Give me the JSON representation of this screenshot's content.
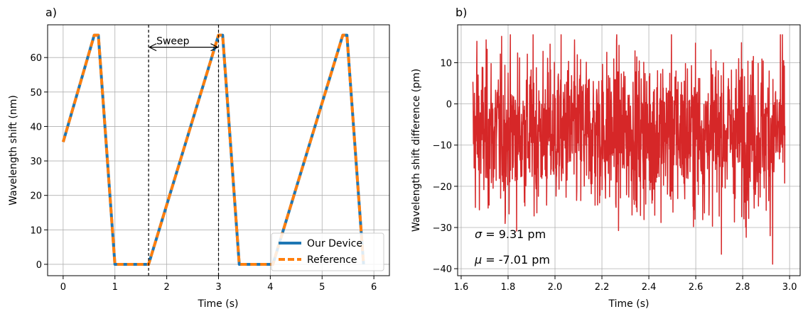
{
  "chart_data": [
    {
      "type": "line",
      "panel_label": "a)",
      "xlabel": "Time (s)",
      "ylabel": "Wavelength shift (nm)",
      "xlim": [
        -0.3,
        6.3
      ],
      "ylim": [
        -3.3,
        69.5
      ],
      "xticks": [
        0,
        1,
        2,
        3,
        4,
        5,
        6
      ],
      "yticks": [
        0,
        10,
        20,
        30,
        40,
        50,
        60
      ],
      "grid": true,
      "legend_position": "lower-right",
      "series": [
        {
          "name": "Our Device",
          "color": "#1f77b4",
          "style": "solid",
          "x": [
            0,
            0.6,
            0.65,
            0.68,
            1.0,
            1.65,
            3.0,
            3.05,
            3.08,
            3.4,
            4.05,
            5.4,
            5.45,
            5.48,
            5.8
          ],
          "y": [
            35.5,
            66.5,
            66.5,
            66.5,
            0,
            0,
            66.5,
            66.5,
            66.5,
            0,
            0,
            66.5,
            66.5,
            66.5,
            0
          ]
        },
        {
          "name": "Reference",
          "color": "#ff7f0e",
          "style": "dashed",
          "x": [
            0,
            0.6,
            0.65,
            0.68,
            1.0,
            1.65,
            3.0,
            3.05,
            3.08,
            3.4,
            4.05,
            5.4,
            5.45,
            5.48,
            5.8
          ],
          "y": [
            35.5,
            66.5,
            66.5,
            66.5,
            0,
            0,
            66.5,
            66.5,
            66.5,
            0,
            0,
            66.5,
            66.5,
            66.5,
            0
          ]
        }
      ],
      "vlines": [
        1.65,
        3.0
      ],
      "annotation": {
        "text": "Sweep",
        "x_start": 1.65,
        "x_end": 3.0,
        "y": 63
      }
    },
    {
      "type": "line",
      "panel_label": "b)",
      "xlabel": "Time (s)",
      "ylabel": "Wavelength shift difference (pm)",
      "xlim": [
        1.585,
        3.045
      ],
      "ylim": [
        -41.7,
        19.2
      ],
      "xticks": [
        "1.6",
        "1.8",
        "2.0",
        "2.2",
        "2.4",
        "2.6",
        "2.8",
        "3.0"
      ],
      "yticks": [
        -40,
        -30,
        -20,
        -10,
        0,
        10
      ],
      "grid": true,
      "series": [
        {
          "name": "",
          "color": "#d62728",
          "x_start": 1.65,
          "x_end": 2.98,
          "samples": 1250,
          "noise": {
            "sigma_pm": 9.31,
            "mean_pm": -7.01,
            "min_pm": -38.9,
            "max_pm": 16.8
          }
        }
      ],
      "stats": [
        {
          "symbol": "σ",
          "text": " = 9.31 pm"
        },
        {
          "symbol": "μ",
          "text": " = -7.01 pm"
        }
      ]
    }
  ]
}
